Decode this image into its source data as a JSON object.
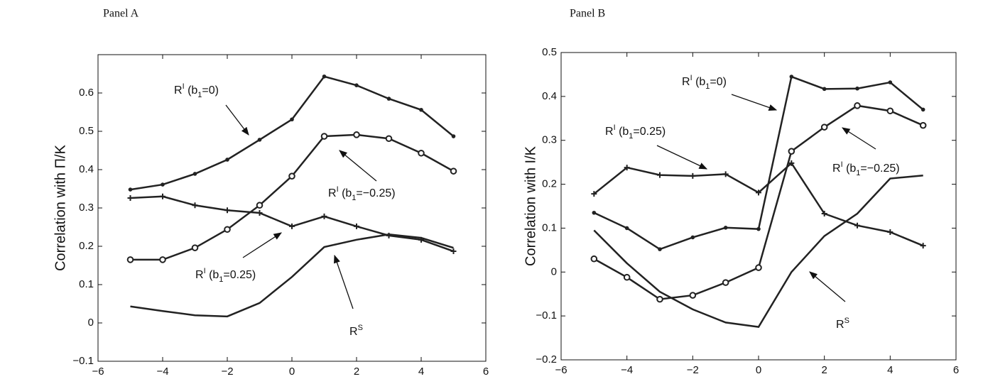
{
  "chart_data": [
    {
      "type": "line",
      "panel_title": "Panel A",
      "y_label": "Correlation with Π/K",
      "x": [
        -5,
        -4,
        -3,
        -2,
        -1,
        0,
        1,
        2,
        3,
        4,
        5
      ],
      "xlim": [
        -6,
        6
      ],
      "xticks": [
        {
          "value": -6,
          "label": "−6"
        },
        {
          "value": -4,
          "label": "−4"
        },
        {
          "value": -2,
          "label": "−2"
        },
        0,
        2,
        4,
        6
      ],
      "ylim": [
        -0.1,
        0.7
      ],
      "yticks": [
        {
          "value": -0.1,
          "label": "−0.1"
        },
        0,
        0.1,
        0.2,
        0.3,
        0.4,
        0.5,
        0.6
      ],
      "series": [
        {
          "color": "#222222",
          "marker": "dot",
          "values": [
            0.348,
            0.361,
            0.389,
            0.426,
            0.478,
            0.531,
            0.643,
            0.62,
            0.585,
            0.556,
            0.487
          ]
        },
        {
          "color": "#222222",
          "marker": "circle",
          "values": [
            0.165,
            0.165,
            0.196,
            0.244,
            0.307,
            0.383,
            0.487,
            0.491,
            0.481,
            0.443,
            0.396
          ]
        },
        {
          "color": "#222222",
          "marker": "plus",
          "values": [
            0.326,
            0.33,
            0.307,
            0.294,
            0.287,
            0.252,
            0.278,
            0.252,
            0.228,
            0.217,
            0.187
          ]
        },
        {
          "color": "#222222",
          "marker": "none",
          "values": [
            0.043,
            0.031,
            0.02,
            0.017,
            0.052,
            0.12,
            0.198,
            0.217,
            0.231,
            0.222,
            0.196
          ]
        }
      ],
      "annotations": [
        {
          "parts": [
            "R",
            "I",
            " (b",
            "1",
            "=0)"
          ]
        },
        {
          "parts": [
            "R",
            "I",
            " (b",
            "1",
            "=−0.25)"
          ]
        },
        {
          "parts": [
            "R",
            "I",
            " (b",
            "1",
            "=0.25)"
          ]
        },
        {
          "parts": [
            "R",
            "S"
          ]
        }
      ]
    },
    {
      "type": "line",
      "panel_title": "Panel B",
      "y_label": "Correlation with I/K",
      "x": [
        -5,
        -4,
        -3,
        -2,
        -1,
        0,
        1,
        2,
        3,
        4,
        5
      ],
      "xlim": [
        -6,
        6
      ],
      "xticks": [
        {
          "value": -6,
          "label": "−6"
        },
        {
          "value": -4,
          "label": "−4"
        },
        {
          "value": -2,
          "label": "−2"
        },
        0,
        2,
        4,
        6
      ],
      "ylim": [
        -0.2,
        0.5
      ],
      "yticks": [
        {
          "value": -0.2,
          "label": "−0.2"
        },
        {
          "value": -0.1,
          "label": "−0.1"
        },
        0,
        0.1,
        0.2,
        0.3,
        0.4,
        0.5
      ],
      "series": [
        {
          "color": "#222222",
          "marker": "dot",
          "values": [
            0.135,
            0.1,
            0.052,
            0.079,
            0.101,
            0.098,
            0.445,
            0.417,
            0.418,
            0.432,
            0.37
          ]
        },
        {
          "color": "#222222",
          "marker": "circle",
          "values": [
            0.03,
            -0.012,
            -0.062,
            -0.053,
            -0.024,
            0.01,
            0.275,
            0.33,
            0.379,
            0.367,
            0.334
          ]
        },
        {
          "color": "#222222",
          "marker": "plus",
          "values": [
            0.178,
            0.238,
            0.221,
            0.219,
            0.223,
            0.181,
            0.248,
            0.133,
            0.106,
            0.091,
            0.06
          ]
        },
        {
          "color": "#222222",
          "marker": "none",
          "values": [
            0.095,
            0.02,
            -0.045,
            -0.085,
            -0.115,
            -0.125,
            0.0,
            0.082,
            0.133,
            0.213,
            0.22
          ]
        }
      ],
      "annotations": [
        {
          "parts": [
            "R",
            "I",
            " (b",
            "1",
            "=0)"
          ]
        },
        {
          "parts": [
            "R",
            "I",
            " (b",
            "1",
            "=−0.25)"
          ]
        },
        {
          "parts": [
            "R",
            "I",
            " (b",
            "1",
            "=0.25)"
          ]
        },
        {
          "parts": [
            "R",
            "S"
          ]
        }
      ]
    }
  ]
}
